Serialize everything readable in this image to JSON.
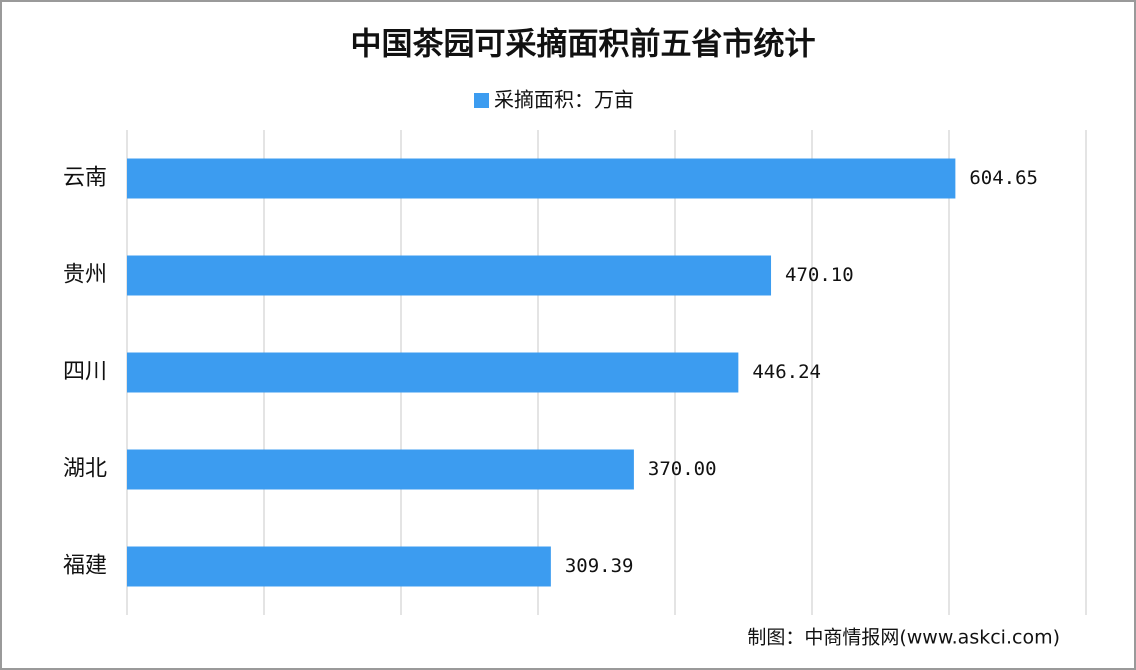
{
  "chart_data": {
    "type": "barh",
    "title": "中国茶园可采摘面积前五省市统计",
    "categories": [
      "云南",
      "贵州",
      "四川",
      "湖北",
      "福建"
    ],
    "series": [
      {
        "name": "采摘面积：万亩",
        "color": "#3c9cf0",
        "values": [
          604.65,
          470.1,
          446.24,
          370,
          309.39
        ],
        "value_labels": [
          "604.65",
          "470.10",
          "446.24",
          "370.00",
          "309.39"
        ]
      }
    ],
    "xlim": [
      0,
      700
    ],
    "xticks": [
      0,
      100,
      200,
      300,
      400,
      500,
      600,
      700
    ],
    "grid": true,
    "source": "制图：中商情报网(www.askci.com)"
  }
}
